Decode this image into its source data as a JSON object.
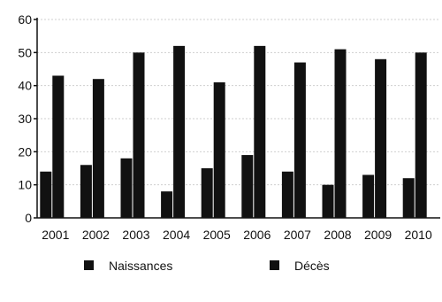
{
  "chart_data": {
    "type": "bar",
    "categories": [
      "2001",
      "2002",
      "2003",
      "2004",
      "2005",
      "2006",
      "2007",
      "2008",
      "2009",
      "2010"
    ],
    "series": [
      {
        "name": "Naissances",
        "values": [
          14,
          16,
          18,
          8,
          15,
          19,
          14,
          10,
          13,
          12
        ],
        "color": "#111111"
      },
      {
        "name": "Décès",
        "values": [
          43,
          42,
          50,
          52,
          41,
          52,
          47,
          51,
          48,
          50
        ],
        "color": "#111111"
      }
    ],
    "title": "",
    "xlabel": "",
    "ylabel": "",
    "ylim": [
      0,
      60
    ],
    "yticks": [
      0,
      10,
      20,
      30,
      40,
      50,
      60
    ],
    "grid": true,
    "legend_position": "bottom"
  }
}
